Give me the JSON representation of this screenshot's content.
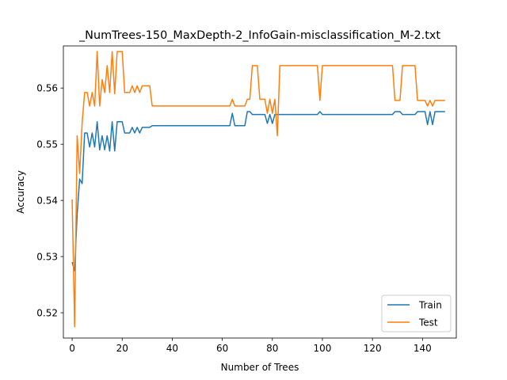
{
  "chart_data": {
    "type": "line",
    "title": "_NumTrees-150_MaxDepth-2_InfoGain-misclassification_M-2.txt",
    "xlabel": "Number of Trees",
    "ylabel": "Accuracy",
    "xlim": [
      -3.5,
      153.5
    ],
    "ylim": [
      0.5155,
      0.5675
    ],
    "xticks": [
      0,
      20,
      40,
      60,
      80,
      100,
      120,
      140
    ],
    "xtick_labels": [
      "0",
      "20",
      "40",
      "60",
      "80",
      "100",
      "120",
      "140"
    ],
    "yticks": [
      0.52,
      0.53,
      0.54,
      0.55,
      0.56
    ],
    "ytick_labels": [
      "0.52",
      "0.53",
      "0.54",
      "0.55",
      "0.56"
    ],
    "grid": false,
    "legend_position": "bottom-right",
    "series": [
      {
        "name": "Train",
        "color": "#1f77b4",
        "x": [
          0,
          1,
          2,
          3,
          4,
          5,
          6,
          7,
          8,
          9,
          10,
          11,
          12,
          13,
          14,
          15,
          16,
          17,
          18,
          19,
          20,
          21,
          22,
          23,
          24,
          25,
          26,
          27,
          28,
          29,
          30,
          31,
          32,
          33,
          34,
          35,
          36,
          37,
          38,
          39,
          40,
          41,
          42,
          43,
          44,
          45,
          46,
          47,
          48,
          49,
          50,
          51,
          52,
          53,
          54,
          55,
          56,
          57,
          58,
          59,
          60,
          61,
          62,
          63,
          64,
          65,
          66,
          67,
          68,
          69,
          70,
          71,
          72,
          73,
          74,
          75,
          76,
          77,
          78,
          79,
          80,
          81,
          82,
          83,
          84,
          85,
          86,
          87,
          88,
          89,
          90,
          91,
          92,
          93,
          94,
          95,
          96,
          97,
          98,
          99,
          100,
          101,
          102,
          103,
          104,
          105,
          106,
          107,
          108,
          109,
          110,
          111,
          112,
          113,
          114,
          115,
          116,
          117,
          118,
          119,
          120,
          121,
          122,
          123,
          124,
          125,
          126,
          127,
          128,
          129,
          130,
          131,
          132,
          133,
          134,
          135,
          136,
          137,
          138,
          139,
          140,
          141,
          142,
          143,
          144,
          145,
          146,
          147,
          148,
          149
        ],
        "values": [
          0.529,
          0.5275,
          0.5375,
          0.5438,
          0.543,
          0.552,
          0.552,
          0.5495,
          0.552,
          0.5495,
          0.554,
          0.549,
          0.5515,
          0.549,
          0.5515,
          0.5488,
          0.554,
          0.5488,
          0.554,
          0.554,
          0.554,
          0.552,
          0.552,
          0.552,
          0.553,
          0.552,
          0.553,
          0.552,
          0.553,
          0.553,
          0.553,
          0.553,
          0.5533,
          0.5533,
          0.5533,
          0.5533,
          0.5533,
          0.5533,
          0.5533,
          0.5533,
          0.5533,
          0.5533,
          0.5533,
          0.5533,
          0.5533,
          0.5533,
          0.5533,
          0.5533,
          0.5533,
          0.5533,
          0.5533,
          0.5533,
          0.5533,
          0.5533,
          0.5533,
          0.5533,
          0.5533,
          0.5533,
          0.5533,
          0.5533,
          0.5533,
          0.5533,
          0.5533,
          0.5533,
          0.5555,
          0.5533,
          0.5533,
          0.5533,
          0.5533,
          0.5533,
          0.5558,
          0.5558,
          0.5553,
          0.5553,
          0.5553,
          0.5553,
          0.5553,
          0.5553,
          0.5537,
          0.5553,
          0.5537,
          0.5553,
          0.5553,
          0.5553,
          0.5553,
          0.5553,
          0.5553,
          0.5553,
          0.5553,
          0.5553,
          0.5553,
          0.5553,
          0.5553,
          0.5553,
          0.5553,
          0.5553,
          0.5553,
          0.5553,
          0.5553,
          0.5558,
          0.5553,
          0.5553,
          0.5553,
          0.5553,
          0.5553,
          0.5553,
          0.5553,
          0.5553,
          0.5553,
          0.5553,
          0.5553,
          0.5553,
          0.5553,
          0.5553,
          0.5553,
          0.5553,
          0.5553,
          0.5553,
          0.5553,
          0.5553,
          0.5553,
          0.5553,
          0.5553,
          0.5553,
          0.5553,
          0.5553,
          0.5553,
          0.5553,
          0.5553,
          0.5558,
          0.5558,
          0.5558,
          0.5553,
          0.5553,
          0.5553,
          0.5553,
          0.5553,
          0.5553,
          0.5558,
          0.5558,
          0.5558,
          0.5558,
          0.5535,
          0.5558,
          0.5535,
          0.5558,
          0.5558,
          0.5558,
          0.5558,
          0.5558
        ]
      },
      {
        "name": "Test",
        "color": "#ff7f0e",
        "x": [
          0,
          1,
          2,
          3,
          4,
          5,
          6,
          7,
          8,
          9,
          10,
          11,
          12,
          13,
          14,
          15,
          16,
          17,
          18,
          19,
          20,
          21,
          22,
          23,
          24,
          25,
          26,
          27,
          28,
          29,
          30,
          31,
          32,
          33,
          34,
          35,
          36,
          37,
          38,
          39,
          40,
          41,
          42,
          43,
          44,
          45,
          46,
          47,
          48,
          49,
          50,
          51,
          52,
          53,
          54,
          55,
          56,
          57,
          58,
          59,
          60,
          61,
          62,
          63,
          64,
          65,
          66,
          67,
          68,
          69,
          70,
          71,
          72,
          73,
          74,
          75,
          76,
          77,
          78,
          79,
          80,
          81,
          82,
          83,
          84,
          85,
          86,
          87,
          88,
          89,
          90,
          91,
          92,
          93,
          94,
          95,
          96,
          97,
          98,
          99,
          100,
          101,
          102,
          103,
          104,
          105,
          106,
          107,
          108,
          109,
          110,
          111,
          112,
          113,
          114,
          115,
          116,
          117,
          118,
          119,
          120,
          121,
          122,
          123,
          124,
          125,
          126,
          127,
          128,
          129,
          130,
          131,
          132,
          133,
          134,
          135,
          136,
          137,
          138,
          139,
          140,
          141,
          142,
          143,
          144,
          145,
          146,
          147,
          148,
          149
        ],
        "values": [
          0.5402,
          0.5175,
          0.5515,
          0.5448,
          0.5538,
          0.5592,
          0.5592,
          0.5568,
          0.5592,
          0.5568,
          0.5665,
          0.5568,
          0.5615,
          0.5592,
          0.564,
          0.5592,
          0.5665,
          0.559,
          0.5665,
          0.5665,
          0.5665,
          0.5592,
          0.5592,
          0.5592,
          0.5604,
          0.5592,
          0.5604,
          0.5592,
          0.5604,
          0.5604,
          0.5604,
          0.5604,
          0.5568,
          0.5568,
          0.5568,
          0.5568,
          0.5568,
          0.5568,
          0.5568,
          0.5568,
          0.5568,
          0.5568,
          0.5568,
          0.5568,
          0.5568,
          0.5568,
          0.5568,
          0.5568,
          0.5568,
          0.5568,
          0.5568,
          0.5568,
          0.5568,
          0.5568,
          0.5568,
          0.5568,
          0.5568,
          0.5568,
          0.5568,
          0.5568,
          0.5568,
          0.5568,
          0.5568,
          0.5568,
          0.558,
          0.5568,
          0.5568,
          0.5568,
          0.5568,
          0.5568,
          0.558,
          0.558,
          0.564,
          0.564,
          0.564,
          0.558,
          0.558,
          0.558,
          0.5555,
          0.558,
          0.5555,
          0.558,
          0.5515,
          0.564,
          0.564,
          0.564,
          0.564,
          0.564,
          0.564,
          0.564,
          0.564,
          0.564,
          0.564,
          0.564,
          0.564,
          0.564,
          0.564,
          0.564,
          0.564,
          0.5578,
          0.564,
          0.564,
          0.564,
          0.564,
          0.564,
          0.564,
          0.564,
          0.564,
          0.564,
          0.564,
          0.564,
          0.564,
          0.564,
          0.564,
          0.564,
          0.564,
          0.564,
          0.564,
          0.564,
          0.564,
          0.564,
          0.564,
          0.564,
          0.564,
          0.564,
          0.564,
          0.564,
          0.564,
          0.564,
          0.5578,
          0.5578,
          0.5578,
          0.564,
          0.564,
          0.564,
          0.564,
          0.564,
          0.564,
          0.5578,
          0.5578,
          0.5578,
          0.5578,
          0.5568,
          0.5578,
          0.5568,
          0.5578,
          0.5578,
          0.5578,
          0.5578,
          0.5578
        ]
      }
    ]
  }
}
